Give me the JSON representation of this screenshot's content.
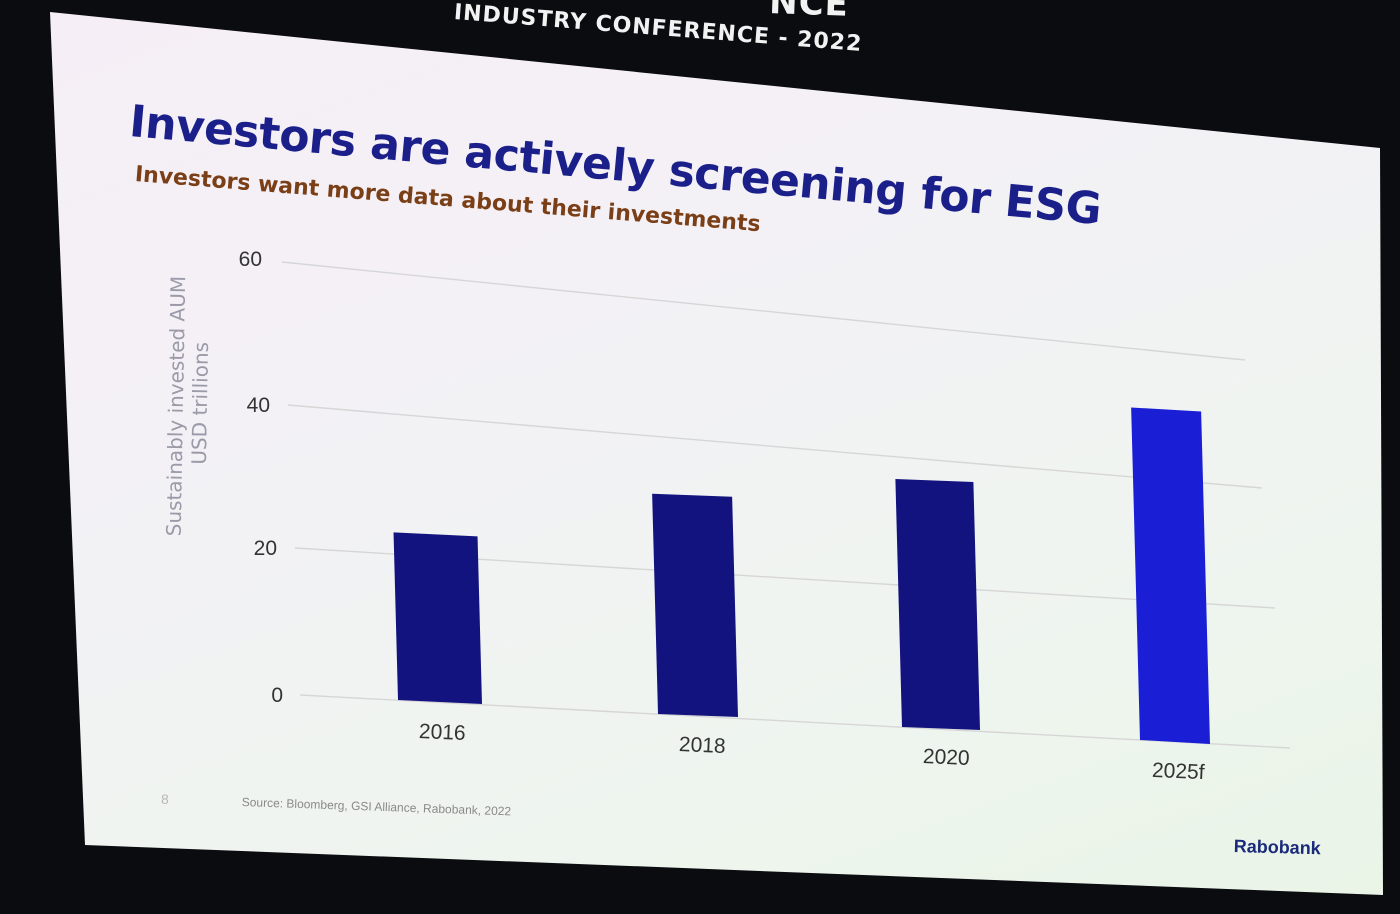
{
  "conference": {
    "line1": "NCE",
    "line2": "INDUSTRY CONFERENCE - 2022"
  },
  "slide": {
    "title": "Investors are actively screening for ESG",
    "subtitle": "Investors want more data about their investments",
    "page_number": "8",
    "source": "Source: Bloomberg, GSI Alliance, Rabobank, 2022",
    "brand": "Rabobank"
  },
  "colors": {
    "bar_actual": "#13137f",
    "bar_forecast": "#1a1fd6",
    "gridline": "#d6d6d6",
    "title": "#1b1f8a",
    "subtitle": "#7a3f17"
  },
  "chart_data": {
    "type": "bar",
    "title": "",
    "xlabel": "",
    "ylabel": "Sustainably invested AUM USD trillions",
    "ylabel_lines": [
      "Sustainably invested AUM",
      "USD trillions"
    ],
    "categories": [
      "2016",
      "2018",
      "2020",
      "2025f"
    ],
    "values": [
      22.8,
      30.7,
      35.3,
      50.0
    ],
    "ylim": [
      0,
      60
    ],
    "yticks": [
      0,
      20,
      40,
      60
    ],
    "grid": true,
    "legend": "none"
  }
}
